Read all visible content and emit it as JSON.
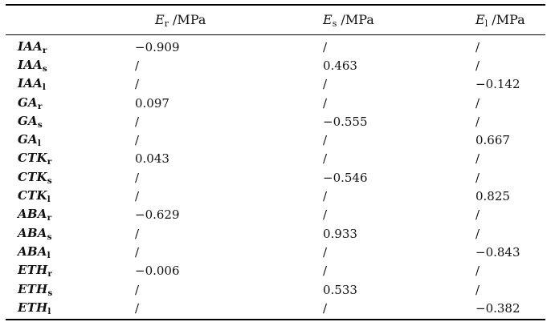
{
  "table": {
    "colors": {
      "text": "#111111",
      "rule": "#000000",
      "background": "#ffffff"
    },
    "columns": [
      {
        "base": "E",
        "sub": "r",
        "unit": " /MPa"
      },
      {
        "base": "E",
        "sub": "s",
        "unit": " /MPa"
      },
      {
        "base": "E",
        "sub": "l",
        "unit": " /MPa"
      }
    ],
    "rows": [
      {
        "label": {
          "base": "IAA",
          "sub": "r"
        },
        "er": "−0.909",
        "es": "/",
        "el": "/"
      },
      {
        "label": {
          "base": "IAA",
          "sub": "s"
        },
        "er": "/",
        "es": "0.463",
        "el": "/"
      },
      {
        "label": {
          "base": "IAA",
          "sub": "l"
        },
        "er": "/",
        "es": "/",
        "el": "−0.142"
      },
      {
        "label": {
          "base": "GA",
          "sub": "r"
        },
        "er": "0.097",
        "es": "/",
        "el": "/"
      },
      {
        "label": {
          "base": "GA",
          "sub": "s"
        },
        "er": "/",
        "es": "−0.555",
        "el": "/"
      },
      {
        "label": {
          "base": "GA",
          "sub": "l"
        },
        "er": "/",
        "es": "/",
        "el": "0.667"
      },
      {
        "label": {
          "base": "CTK",
          "sub": "r"
        },
        "er": "0.043",
        "es": "/",
        "el": "/"
      },
      {
        "label": {
          "base": "CTK",
          "sub": "s"
        },
        "er": "/",
        "es": "−0.546",
        "el": "/"
      },
      {
        "label": {
          "base": "CTK",
          "sub": "l"
        },
        "er": "/",
        "es": "/",
        "el": "0.825"
      },
      {
        "label": {
          "base": "ABA",
          "sub": "r"
        },
        "er": "−0.629",
        "es": "/",
        "el": "/"
      },
      {
        "label": {
          "base": "ABA",
          "sub": "s"
        },
        "er": "/",
        "es": "0.933",
        "el": "/"
      },
      {
        "label": {
          "base": "ABA",
          "sub": "l"
        },
        "er": "/",
        "es": "/",
        "el": "−0.843"
      },
      {
        "label": {
          "base": "ETH",
          "sub": "r"
        },
        "er": "−0.006",
        "es": "/",
        "el": "/"
      },
      {
        "label": {
          "base": "ETH",
          "sub": "s"
        },
        "er": "/",
        "es": "0.533",
        "el": "/"
      },
      {
        "label": {
          "base": "ETH",
          "sub": "l"
        },
        "er": "/",
        "es": "/",
        "el": "−0.382"
      }
    ]
  }
}
